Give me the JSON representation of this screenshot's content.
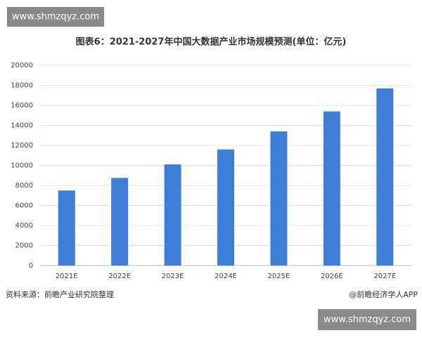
{
  "chart_data": {
    "type": "bar",
    "title": "图表6：2021-2027年中国大数据产业市场规模预测(单位：亿元)",
    "categories": [
      "2021E",
      "2022E",
      "2023E",
      "2024E",
      "2025E",
      "2026E",
      "2027E"
    ],
    "values": [
      7500,
      8750,
      10100,
      11600,
      13400,
      15400,
      17700
    ],
    "color": "#3d7fd8",
    "ylim": [
      0,
      20000
    ],
    "yticks": [
      0,
      2000,
      4000,
      6000,
      8000,
      10000,
      12000,
      14000,
      16000,
      18000,
      20000
    ],
    "grid": true
  },
  "watermark_top": "www.shmzqyz.com",
  "source": "资料来源：前瞻产业研究院整理",
  "credit": "@前瞻经济学人APP",
  "watermark_bottom": "www.shmzqyz.com"
}
